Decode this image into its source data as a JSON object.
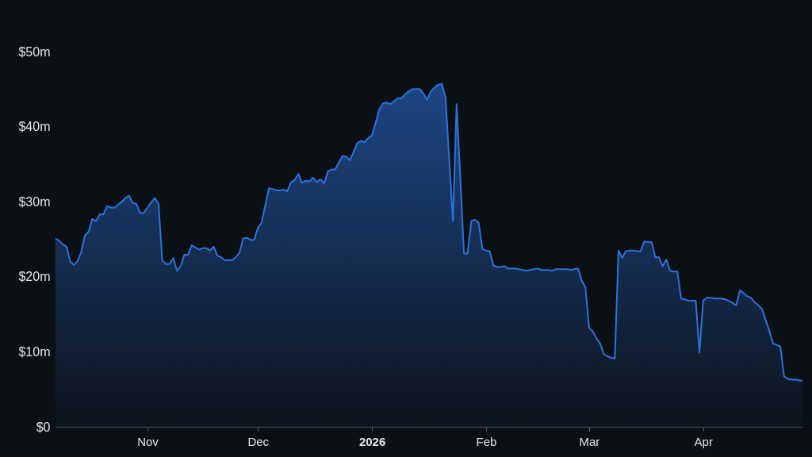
{
  "chart_data": {
    "type": "area",
    "x": [
      "2025-10-07",
      "2025-10-08",
      "2025-10-09",
      "2025-10-10",
      "2025-10-11",
      "2025-10-12",
      "2025-10-13",
      "2025-10-14",
      "2025-10-15",
      "2025-10-16",
      "2025-10-17",
      "2025-10-18",
      "2025-10-19",
      "2025-10-20",
      "2025-10-21",
      "2025-10-22",
      "2025-10-23",
      "2025-10-24",
      "2025-10-25",
      "2025-10-26",
      "2025-10-27",
      "2025-10-28",
      "2025-10-29",
      "2025-10-30",
      "2025-10-31",
      "2025-11-01",
      "2025-11-02",
      "2025-11-03",
      "2025-11-04",
      "2025-11-05",
      "2025-11-06",
      "2025-11-07",
      "2025-11-08",
      "2025-11-09",
      "2025-11-10",
      "2025-11-11",
      "2025-11-12",
      "2025-11-13",
      "2025-11-14",
      "2025-11-15",
      "2025-11-16",
      "2025-11-17",
      "2025-11-18",
      "2025-11-19",
      "2025-11-20",
      "2025-11-21",
      "2025-11-22",
      "2025-11-23",
      "2025-11-24",
      "2025-11-25",
      "2025-11-26",
      "2025-11-27",
      "2025-11-28",
      "2025-11-29",
      "2025-11-30",
      "2025-12-01",
      "2025-12-02",
      "2025-12-03",
      "2025-12-04",
      "2025-12-05",
      "2025-12-06",
      "2025-12-07",
      "2025-12-08",
      "2025-12-09",
      "2025-12-10",
      "2025-12-11",
      "2025-12-12",
      "2025-12-13",
      "2025-12-14",
      "2025-12-15",
      "2025-12-16",
      "2025-12-17",
      "2025-12-18",
      "2025-12-19",
      "2025-12-20",
      "2025-12-21",
      "2025-12-22",
      "2025-12-23",
      "2025-12-24",
      "2025-12-25",
      "2025-12-26",
      "2025-12-27",
      "2025-12-28",
      "2025-12-29",
      "2025-12-30",
      "2025-12-31",
      "2026-01-01",
      "2026-01-02",
      "2026-01-03",
      "2026-01-04",
      "2026-01-05",
      "2026-01-06",
      "2026-01-07",
      "2026-01-08",
      "2026-01-09",
      "2026-01-10",
      "2026-01-11",
      "2026-01-12",
      "2026-01-13",
      "2026-01-14",
      "2026-01-15",
      "2026-01-16",
      "2026-01-17",
      "2026-01-18",
      "2026-01-19",
      "2026-01-20",
      "2026-01-21",
      "2026-01-22",
      "2026-01-23",
      "2026-01-24",
      "2026-01-25",
      "2026-01-26",
      "2026-01-27",
      "2026-01-28",
      "2026-01-29",
      "2026-01-30",
      "2026-01-31",
      "2026-02-01",
      "2026-02-02",
      "2026-02-03",
      "2026-02-04",
      "2026-02-05",
      "2026-02-06",
      "2026-02-07",
      "2026-02-08",
      "2026-02-09",
      "2026-02-10",
      "2026-02-11",
      "2026-02-12",
      "2026-02-13",
      "2026-02-14",
      "2026-02-15",
      "2026-02-16",
      "2026-02-17",
      "2026-02-18",
      "2026-02-19",
      "2026-02-20",
      "2026-02-21",
      "2026-02-22",
      "2026-02-23",
      "2026-02-24",
      "2026-02-25",
      "2026-02-26",
      "2026-02-27",
      "2026-02-28",
      "2026-03-01",
      "2026-03-02",
      "2026-03-03",
      "2026-03-04",
      "2026-03-05",
      "2026-03-06",
      "2026-03-07",
      "2026-03-08",
      "2026-03-09",
      "2026-03-10",
      "2026-03-11",
      "2026-03-12",
      "2026-03-13",
      "2026-03-14",
      "2026-03-15",
      "2026-03-16",
      "2026-03-17",
      "2026-03-18",
      "2026-03-19",
      "2026-03-20",
      "2026-03-21",
      "2026-03-22",
      "2026-03-23",
      "2026-03-24",
      "2026-03-25",
      "2026-03-26",
      "2026-03-27",
      "2026-03-28",
      "2026-03-29",
      "2026-03-30",
      "2026-03-31",
      "2026-04-01",
      "2026-04-02",
      "2026-04-03",
      "2026-04-04",
      "2026-04-05",
      "2026-04-06",
      "2026-04-07",
      "2026-04-08",
      "2026-04-09",
      "2026-04-10",
      "2026-04-11",
      "2026-04-12",
      "2026-04-13",
      "2026-04-14",
      "2026-04-15",
      "2026-04-16",
      "2026-04-17",
      "2026-04-18",
      "2026-04-19",
      "2026-04-20",
      "2026-04-21",
      "2026-04-22",
      "2026-04-23",
      "2026-04-24",
      "2026-04-25",
      "2026-04-26",
      "2026-04-27",
      "2026-04-28"
    ],
    "series": [
      {
        "color": "#2b72e0",
        "values": [
          25.1,
          24.8,
          24.3,
          24.0,
          22.0,
          21.6,
          22.1,
          23.3,
          25.5,
          26.0,
          27.7,
          27.4,
          28.3,
          28.3,
          29.4,
          29.2,
          29.2,
          29.6,
          30.0,
          30.5,
          30.8,
          29.8,
          29.7,
          28.5,
          28.5,
          29.2,
          29.9,
          30.5,
          29.7,
          22.2,
          21.7,
          21.7,
          22.5,
          20.8,
          21.4,
          22.9,
          22.9,
          24.2,
          23.9,
          23.6,
          23.8,
          23.8,
          23.5,
          24.0,
          22.8,
          22.6,
          22.2,
          22.2,
          22.2,
          22.6,
          23.2,
          25.1,
          25.2,
          24.9,
          24.9,
          26.5,
          27.2,
          29.5,
          31.8,
          31.7,
          31.5,
          31.5,
          31.6,
          31.4,
          32.6,
          32.9,
          33.7,
          32.5,
          32.8,
          32.7,
          33.2,
          32.6,
          33.0,
          32.4,
          34.0,
          34.3,
          34.3,
          35.2,
          36.1,
          36.0,
          35.5,
          36.6,
          37.8,
          38.1,
          37.9,
          38.5,
          38.8,
          40.5,
          42.3,
          43.1,
          43.2,
          43.0,
          43.4,
          43.8,
          43.8,
          44.3,
          44.7,
          45.0,
          45.0,
          45.0,
          44.4,
          43.6,
          44.7,
          45.2,
          45.6,
          45.7,
          43.9,
          35.6,
          27.4,
          43.0,
          33.3,
          23.1,
          23.1,
          27.4,
          27.6,
          27.2,
          23.7,
          23.5,
          23.4,
          21.5,
          21.3,
          21.3,
          21.4,
          21.1,
          21.1,
          21.1,
          21.0,
          20.9,
          20.8,
          20.9,
          21.0,
          21.1,
          20.9,
          20.9,
          20.9,
          20.8,
          21.0,
          21.0,
          21.0,
          21.0,
          20.9,
          21.0,
          21.1,
          19.5,
          18.6,
          13.2,
          12.7,
          11.8,
          11.1,
          9.7,
          9.4,
          9.2,
          9.1,
          23.5,
          22.5,
          23.4,
          23.5,
          23.5,
          23.4,
          23.4,
          24.7,
          24.6,
          24.6,
          22.6,
          22.6,
          21.4,
          22.3,
          20.8,
          20.7,
          20.7,
          17.1,
          17.0,
          16.8,
          16.8,
          16.8,
          9.9,
          16.8,
          17.2,
          17.2,
          17.1,
          17.1,
          17.1,
          17.0,
          16.8,
          16.5,
          16.2,
          18.2,
          17.8,
          17.4,
          17.2,
          16.6,
          16.2,
          15.7,
          14.2,
          12.8,
          11.1,
          10.9,
          10.7,
          6.7,
          6.4,
          6.3,
          6.3,
          6.2,
          6.1
        ]
      }
    ],
    "xlim": [
      "2025-10-07",
      "2026-04-28"
    ],
    "xticks": [
      {
        "value": "2025-11-01",
        "label": "Nov"
      },
      {
        "value": "2025-12-01",
        "label": "Dec"
      },
      {
        "value": "2026-01-01",
        "label": "2026"
      },
      {
        "value": "2026-02-01",
        "label": "Feb"
      },
      {
        "value": "2026-03-01",
        "label": "Mar"
      },
      {
        "value": "2026-04-01",
        "label": "Apr"
      }
    ],
    "ylim": [
      0,
      50
    ],
    "yticks": [
      {
        "value": 0,
        "label": "$0"
      },
      {
        "value": 10,
        "label": "$10m"
      },
      {
        "value": 20,
        "label": "$20m"
      },
      {
        "value": 30,
        "label": "$30m"
      },
      {
        "value": 40,
        "label": "$40m"
      },
      {
        "value": 50,
        "label": "$50m"
      }
    ]
  }
}
